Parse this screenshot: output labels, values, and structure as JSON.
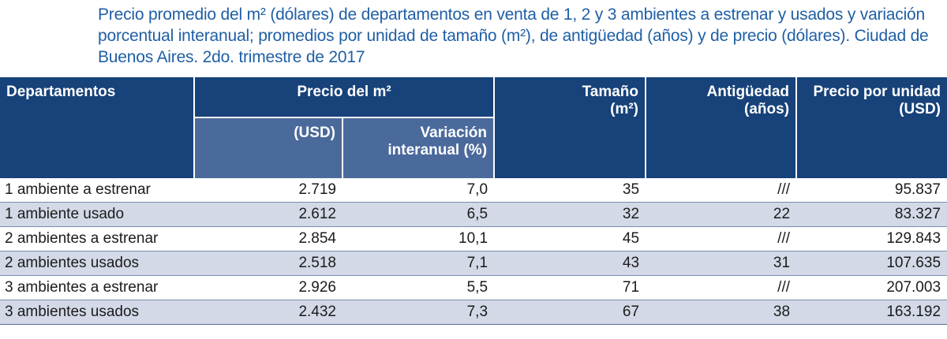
{
  "title": "Precio promedio del m² (dólares) de departamentos en venta de 1, 2 y 3 ambientes a estrenar y usados y variación porcentual interanual; promedios por unidad de tamaño (m²), de antigüedad (años) y de precio (dólares). Ciudad de Buenos Aires. 2do. trimestre de 2017",
  "table": {
    "headers": {
      "departamentos": "Departamentos",
      "precio_m2": "Precio del m²",
      "usd": "(USD)",
      "variacion_l1": "Variación",
      "variacion_l2": "interanual (%)",
      "tamano_l1": "Tamaño",
      "tamano_l2": "(m²)",
      "antiguedad_l1": "Antigüedad",
      "antiguedad_l2": "(años)",
      "precio_unidad_l1": "Precio por unidad",
      "precio_unidad_l2": "(USD)"
    },
    "rows": [
      {
        "departamento": "1 ambiente a estrenar",
        "usd": "2.719",
        "variacion": "7,0",
        "tamano": "35",
        "antiguedad": "///",
        "precio_unidad": "95.837"
      },
      {
        "departamento": "1 ambiente usado",
        "usd": "2.612",
        "variacion": "6,5",
        "tamano": "32",
        "antiguedad": "22",
        "precio_unidad": "83.327"
      },
      {
        "departamento": "2 ambientes a estrenar",
        "usd": "2.854",
        "variacion": "10,1",
        "tamano": "45",
        "antiguedad": "///",
        "precio_unidad": "129.843"
      },
      {
        "departamento": "2 ambientes usados",
        "usd": "2.518",
        "variacion": "7,1",
        "tamano": "43",
        "antiguedad": "31",
        "precio_unidad": "107.635"
      },
      {
        "departamento": "3 ambientes a estrenar",
        "usd": "2.926",
        "variacion": "5,5",
        "tamano": "71",
        "antiguedad": "///",
        "precio_unidad": "207.003"
      },
      {
        "departamento": "3 ambientes usados",
        "usd": "2.432",
        "variacion": "7,3",
        "tamano": "67",
        "antiguedad": "38",
        "precio_unidad": "163.192"
      }
    ]
  }
}
